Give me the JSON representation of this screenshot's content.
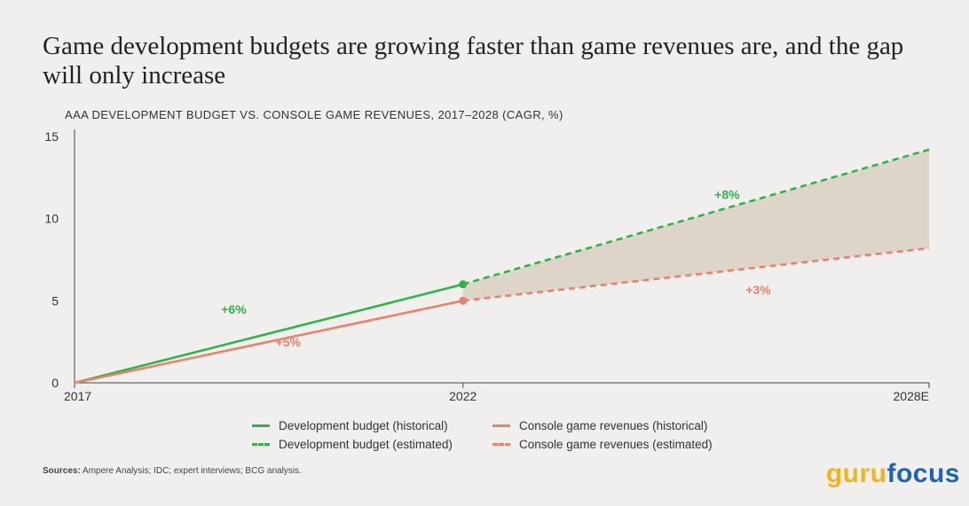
{
  "title": "Game development budgets are growing faster than game revenues are, and the gap will only increase",
  "subtitle": "AAA DEVELOPMENT BUDGET VS. CONSOLE GAME REVENUES, 2017–2028 (CAGR, %)",
  "sources": {
    "label": "Sources:",
    "text": "Ampere Analysis; IDC; expert interviews; BCG analysis."
  },
  "brand": {
    "part1": "guru",
    "part2": "focus"
  },
  "colors": {
    "dev": "#2db34a",
    "rev": "#e8826a",
    "gap": "#ddd6c8",
    "axis": "#444444"
  },
  "chart_data": {
    "type": "line",
    "x_ticks": [
      {
        "x": 0,
        "label": "2017"
      },
      {
        "x": 5,
        "label": "2022"
      },
      {
        "x": 11,
        "label": "2028E"
      }
    ],
    "y_ticks": [
      0,
      5,
      10,
      15
    ],
    "xlim": [
      0,
      11
    ],
    "ylim": [
      0,
      15
    ],
    "series": [
      {
        "name": "Development budget (historical)",
        "key": "dev",
        "dashed": false,
        "points": [
          [
            0,
            0
          ],
          [
            5,
            6.0
          ]
        ],
        "label": "+6%",
        "label_at": [
          2.05,
          4.2
        ]
      },
      {
        "name": "Development budget (estimated)",
        "key": "dev",
        "dashed": true,
        "points": [
          [
            5,
            6.0
          ],
          [
            11,
            14.2
          ]
        ],
        "label": "+8%",
        "label_at": [
          8.4,
          11.2
        ]
      },
      {
        "name": "Console game revenues (historical)",
        "key": "rev",
        "dashed": false,
        "points": [
          [
            0,
            0
          ],
          [
            5,
            5.0
          ]
        ],
        "label": "+5%",
        "label_at": [
          2.75,
          2.2
        ]
      },
      {
        "name": "Console game revenues (estimated)",
        "key": "rev",
        "dashed": true,
        "points": [
          [
            5,
            5.0
          ],
          [
            11,
            8.2
          ]
        ],
        "label": "+3%",
        "label_at": [
          8.8,
          5.4
        ]
      }
    ],
    "legend": {
      "position": "bottom",
      "items": [
        {
          "label": "Development budget (historical)",
          "key": "dev",
          "dashed": false
        },
        {
          "label": "Development budget (estimated)",
          "key": "dev",
          "dashed": true
        },
        {
          "label": "Console game revenues (historical)",
          "key": "rev",
          "dashed": false
        },
        {
          "label": "Console game revenues (estimated)",
          "key": "rev",
          "dashed": true
        }
      ]
    }
  }
}
